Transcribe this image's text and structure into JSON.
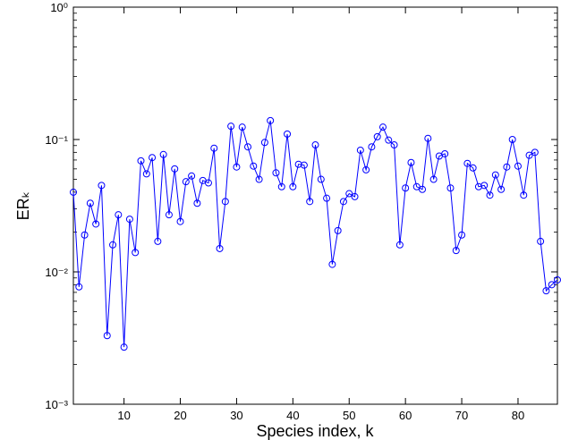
{
  "chart_data": {
    "type": "line",
    "xlabel": "Species index, k",
    "ylabel": "ERₖ",
    "x": [
      1,
      2,
      3,
      4,
      5,
      6,
      7,
      8,
      9,
      10,
      11,
      12,
      13,
      14,
      15,
      16,
      17,
      18,
      19,
      20,
      21,
      22,
      23,
      24,
      25,
      26,
      27,
      28,
      29,
      30,
      31,
      32,
      33,
      34,
      35,
      36,
      37,
      38,
      39,
      40,
      41,
      42,
      43,
      44,
      45,
      46,
      47,
      48,
      49,
      50,
      51,
      52,
      53,
      54,
      55,
      56,
      57,
      58,
      59,
      60,
      61,
      62,
      63,
      64,
      65,
      66,
      67,
      68,
      69,
      70,
      71,
      72,
      73,
      74,
      75,
      76,
      77,
      78,
      79,
      80,
      81,
      82,
      83,
      84,
      85,
      86,
      87
    ],
    "series": [
      {
        "name": "ER",
        "color": "#0000ff",
        "values": [
          0.04,
          0.0077,
          0.019,
          0.033,
          0.023,
          0.045,
          0.0033,
          0.016,
          0.027,
          0.0027,
          0.025,
          0.014,
          0.069,
          0.055,
          0.073,
          0.017,
          0.077,
          0.027,
          0.06,
          0.024,
          0.048,
          0.053,
          0.033,
          0.049,
          0.047,
          0.086,
          0.015,
          0.034,
          0.126,
          0.062,
          0.124,
          0.088,
          0.063,
          0.05,
          0.095,
          0.139,
          0.056,
          0.044,
          0.11,
          0.044,
          0.065,
          0.064,
          0.034,
          0.091,
          0.05,
          0.036,
          0.0114,
          0.0205,
          0.034,
          0.039,
          0.037,
          0.083,
          0.059,
          0.088,
          0.105,
          0.124,
          0.099,
          0.091,
          0.016,
          0.043,
          0.067,
          0.044,
          0.042,
          0.102,
          0.05,
          0.075,
          0.078,
          0.043,
          0.0145,
          0.019,
          0.066,
          0.061,
          0.044,
          0.045,
          0.038,
          0.054,
          0.042,
          0.062,
          0.1,
          0.063,
          0.038,
          0.076,
          0.08,
          0.017,
          0.0072,
          0.008,
          0.0087
        ]
      }
    ],
    "xlim": [
      1,
      87
    ],
    "xticks": [
      10,
      20,
      30,
      40,
      50,
      60,
      70,
      80
    ],
    "ylim": [
      0.001,
      1
    ],
    "yscale": "log",
    "yticks": [
      {
        "value": 0.001,
        "label": "10⁻³"
      },
      {
        "value": 0.01,
        "label": "10⁻²"
      },
      {
        "value": 0.1,
        "label": "10⁻¹"
      },
      {
        "value": 1,
        "label": "10⁰"
      }
    ],
    "marker": "open-circle",
    "grid": false
  }
}
